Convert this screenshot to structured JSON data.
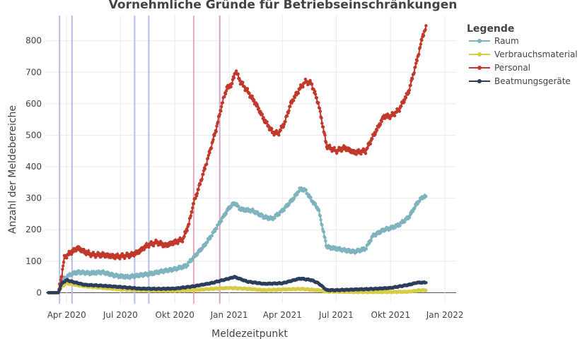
{
  "chart_data": {
    "type": "line",
    "title": "Vornehmliche Gründe für Betriebseinschränkungen",
    "xlabel": "Meldezeitpunkt",
    "ylabel": "Anzahl der Meldebereiche",
    "x_ticks": [
      {
        "date": "2020-04-01",
        "label": "Apr 2020"
      },
      {
        "date": "2020-07-01",
        "label": "Jul 2020"
      },
      {
        "date": "2020-10-01",
        "label": "Okt 2020"
      },
      {
        "date": "2021-01-01",
        "label": "Jan 2021"
      },
      {
        "date": "2021-04-01",
        "label": "Apr 2021"
      },
      {
        "date": "2021-07-01",
        "label": "Jul 2021"
      },
      {
        "date": "2021-10-01",
        "label": "Okt 2021"
      },
      {
        "date": "2022-01-01",
        "label": "Jan 2022"
      }
    ],
    "xlim": [
      "2020-02-26",
      "2022-01-20"
    ],
    "y_ticks": [
      0,
      100,
      200,
      300,
      400,
      500,
      600,
      700,
      800
    ],
    "ylim": [
      -35,
      880
    ],
    "grid": true,
    "legend": {
      "title": "Legende",
      "position": "right"
    },
    "vlines": [
      {
        "date": "2020-03-20",
        "color": "#b4bde6"
      },
      {
        "date": "2020-04-10",
        "color": "#b4bde6"
      },
      {
        "date": "2020-07-25",
        "color": "#b4bde6"
      },
      {
        "date": "2020-08-18",
        "color": "#b4bde6"
      },
      {
        "date": "2020-11-02",
        "color": "#f4a6bf"
      },
      {
        "date": "2020-12-16",
        "color": "#d9a1c9"
      }
    ],
    "series": [
      {
        "name": "Raum",
        "color": "#7fb3bd",
        "points": [
          [
            "2020-03-01",
            0
          ],
          [
            "2020-03-18",
            0
          ],
          [
            "2020-03-24",
            35
          ],
          [
            "2020-04-01",
            50
          ],
          [
            "2020-04-10",
            60
          ],
          [
            "2020-04-20",
            65
          ],
          [
            "2020-05-10",
            62
          ],
          [
            "2020-06-01",
            65
          ],
          [
            "2020-06-20",
            55
          ],
          [
            "2020-07-01",
            52
          ],
          [
            "2020-07-15",
            50
          ],
          [
            "2020-08-01",
            55
          ],
          [
            "2020-08-20",
            60
          ],
          [
            "2020-09-10",
            68
          ],
          [
            "2020-10-01",
            75
          ],
          [
            "2020-10-20",
            85
          ],
          [
            "2020-11-01",
            110
          ],
          [
            "2020-11-20",
            150
          ],
          [
            "2020-12-05",
            190
          ],
          [
            "2020-12-20",
            235
          ],
          [
            "2021-01-01",
            270
          ],
          [
            "2021-01-10",
            285
          ],
          [
            "2021-01-20",
            265
          ],
          [
            "2021-02-10",
            260
          ],
          [
            "2021-03-01",
            240
          ],
          [
            "2021-03-15",
            235
          ],
          [
            "2021-04-01",
            260
          ],
          [
            "2021-04-20",
            300
          ],
          [
            "2021-05-01",
            330
          ],
          [
            "2021-05-10",
            325
          ],
          [
            "2021-05-20",
            295
          ],
          [
            "2021-06-01",
            265
          ],
          [
            "2021-06-15",
            145
          ],
          [
            "2021-07-01",
            140
          ],
          [
            "2021-07-15",
            135
          ],
          [
            "2021-08-01",
            130
          ],
          [
            "2021-08-20",
            140
          ],
          [
            "2021-09-01",
            180
          ],
          [
            "2021-09-20",
            200
          ],
          [
            "2021-10-01",
            205
          ],
          [
            "2021-10-15",
            215
          ],
          [
            "2021-11-01",
            240
          ],
          [
            "2021-11-15",
            285
          ],
          [
            "2021-11-25",
            305
          ],
          [
            "2021-11-30",
            305
          ]
        ]
      },
      {
        "name": "Verbrauchsmaterial",
        "color": "#d8cc47",
        "points": [
          [
            "2020-03-01",
            0
          ],
          [
            "2020-03-18",
            0
          ],
          [
            "2020-03-24",
            20
          ],
          [
            "2020-04-01",
            30
          ],
          [
            "2020-04-15",
            25
          ],
          [
            "2020-05-01",
            20
          ],
          [
            "2020-06-01",
            15
          ],
          [
            "2020-07-01",
            10
          ],
          [
            "2020-08-01",
            8
          ],
          [
            "2020-09-01",
            7
          ],
          [
            "2020-10-01",
            6
          ],
          [
            "2020-11-01",
            8
          ],
          [
            "2020-12-01",
            12
          ],
          [
            "2021-01-01",
            15
          ],
          [
            "2021-02-01",
            12
          ],
          [
            "2021-03-01",
            8
          ],
          [
            "2021-04-01",
            10
          ],
          [
            "2021-05-01",
            12
          ],
          [
            "2021-06-01",
            8
          ],
          [
            "2021-06-15",
            3
          ],
          [
            "2021-07-01",
            3
          ],
          [
            "2021-08-01",
            2
          ],
          [
            "2021-09-01",
            2
          ],
          [
            "2021-10-01",
            2
          ],
          [
            "2021-11-01",
            3
          ],
          [
            "2021-11-20",
            8
          ],
          [
            "2021-11-30",
            8
          ]
        ]
      },
      {
        "name": "Personal",
        "color": "#c0392b",
        "points": [
          [
            "2020-03-01",
            0
          ],
          [
            "2020-03-18",
            0
          ],
          [
            "2020-03-24",
            60
          ],
          [
            "2020-03-28",
            110
          ],
          [
            "2020-04-01",
            118
          ],
          [
            "2020-04-10",
            130
          ],
          [
            "2020-04-20",
            142
          ],
          [
            "2020-05-01",
            130
          ],
          [
            "2020-05-15",
            120
          ],
          [
            "2020-06-01",
            120
          ],
          [
            "2020-06-20",
            115
          ],
          [
            "2020-07-01",
            115
          ],
          [
            "2020-07-20",
            120
          ],
          [
            "2020-08-01",
            130
          ],
          [
            "2020-08-15",
            150
          ],
          [
            "2020-09-01",
            160
          ],
          [
            "2020-09-15",
            150
          ],
          [
            "2020-10-01",
            160
          ],
          [
            "2020-10-15",
            170
          ],
          [
            "2020-10-25",
            220
          ],
          [
            "2020-11-01",
            280
          ],
          [
            "2020-11-10",
            330
          ],
          [
            "2020-11-20",
            390
          ],
          [
            "2020-12-01",
            460
          ],
          [
            "2020-12-10",
            520
          ],
          [
            "2020-12-20",
            600
          ],
          [
            "2020-12-28",
            650
          ],
          [
            "2021-01-05",
            660
          ],
          [
            "2021-01-12",
            705
          ],
          [
            "2021-01-20",
            670
          ],
          [
            "2021-02-01",
            640
          ],
          [
            "2021-02-15",
            600
          ],
          [
            "2021-03-01",
            550
          ],
          [
            "2021-03-15",
            510
          ],
          [
            "2021-03-25",
            505
          ],
          [
            "2021-04-05",
            540
          ],
          [
            "2021-04-15",
            600
          ],
          [
            "2021-05-01",
            650
          ],
          [
            "2021-05-10",
            670
          ],
          [
            "2021-05-20",
            665
          ],
          [
            "2021-06-01",
            600
          ],
          [
            "2021-06-15",
            465
          ],
          [
            "2021-07-01",
            450
          ],
          [
            "2021-07-15",
            460
          ],
          [
            "2021-08-01",
            445
          ],
          [
            "2021-08-20",
            450
          ],
          [
            "2021-09-01",
            495
          ],
          [
            "2021-09-20",
            560
          ],
          [
            "2021-10-01",
            560
          ],
          [
            "2021-10-15",
            580
          ],
          [
            "2021-11-01",
            640
          ],
          [
            "2021-11-15",
            740
          ],
          [
            "2021-11-25",
            820
          ],
          [
            "2021-11-30",
            840
          ]
        ]
      },
      {
        "name": "Beatmungsgeräte",
        "color": "#2c3e5c",
        "points": [
          [
            "2020-03-01",
            0
          ],
          [
            "2020-03-18",
            0
          ],
          [
            "2020-03-24",
            30
          ],
          [
            "2020-04-01",
            40
          ],
          [
            "2020-04-10",
            35
          ],
          [
            "2020-05-01",
            25
          ],
          [
            "2020-06-01",
            22
          ],
          [
            "2020-07-01",
            18
          ],
          [
            "2020-08-01",
            13
          ],
          [
            "2020-09-01",
            12
          ],
          [
            "2020-10-01",
            13
          ],
          [
            "2020-11-01",
            20
          ],
          [
            "2020-12-01",
            30
          ],
          [
            "2021-01-01",
            45
          ],
          [
            "2021-01-10",
            50
          ],
          [
            "2021-02-01",
            35
          ],
          [
            "2021-03-01",
            28
          ],
          [
            "2021-04-01",
            30
          ],
          [
            "2021-05-01",
            45
          ],
          [
            "2021-05-20",
            40
          ],
          [
            "2021-06-01",
            30
          ],
          [
            "2021-06-15",
            8
          ],
          [
            "2021-07-01",
            8
          ],
          [
            "2021-08-01",
            10
          ],
          [
            "2021-09-01",
            12
          ],
          [
            "2021-10-01",
            15
          ],
          [
            "2021-11-01",
            25
          ],
          [
            "2021-11-15",
            32
          ],
          [
            "2021-11-30",
            32
          ]
        ]
      }
    ]
  }
}
